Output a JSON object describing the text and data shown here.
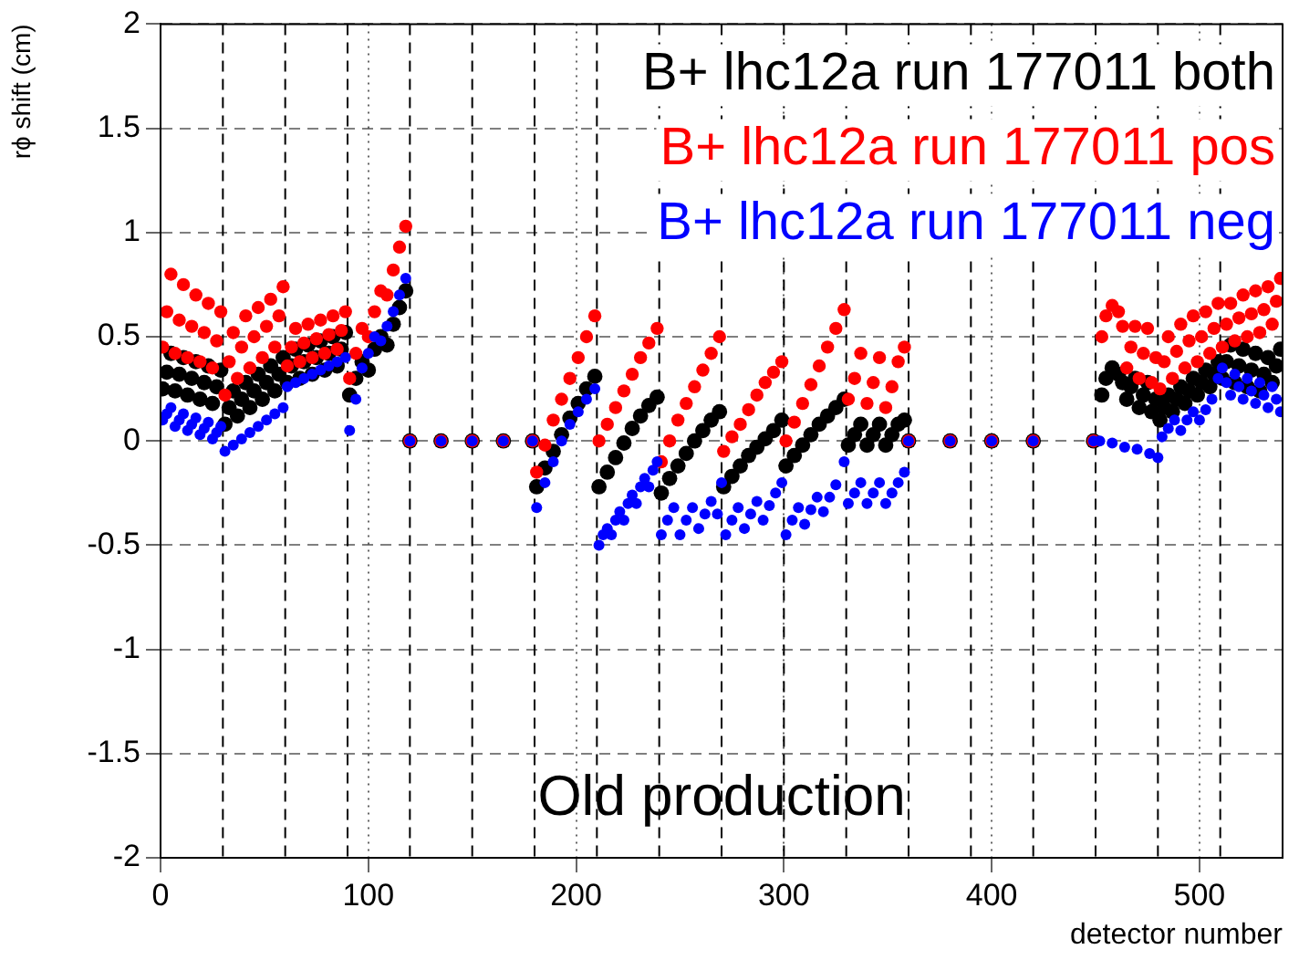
{
  "chart_data": {
    "type": "scatter",
    "xlabel": "detector number",
    "ylabel": "rϕ shift (cm)",
    "xlim": [
      0,
      540
    ],
    "ylim": [
      -2,
      2
    ],
    "xticks": [
      0,
      100,
      200,
      300,
      400,
      500
    ],
    "yticks": [
      -2,
      -1.5,
      -1,
      -0.5,
      0,
      0.5,
      1,
      1.5,
      2
    ],
    "grid": true,
    "legend": "top right",
    "marker": "circle",
    "annotations": [
      {
        "text": "Old production"
      }
    ],
    "ref_lines": [
      {
        "axis": "x",
        "value": 30,
        "line_style": "dashed"
      },
      {
        "axis": "x",
        "value": 60,
        "line_style": "dashed"
      },
      {
        "axis": "x",
        "value": 90,
        "line_style": "dashed"
      },
      {
        "axis": "x",
        "value": 120,
        "line_style": "dashed"
      },
      {
        "axis": "x",
        "value": 150,
        "line_style": "dashed"
      },
      {
        "axis": "x",
        "value": 180,
        "line_style": "dashed"
      },
      {
        "axis": "x",
        "value": 210,
        "line_style": "dashed"
      },
      {
        "axis": "x",
        "value": 240,
        "line_style": "dashed"
      },
      {
        "axis": "x",
        "value": 270,
        "line_style": "dashed"
      },
      {
        "axis": "x",
        "value": 300,
        "line_style": "dashed"
      },
      {
        "axis": "x",
        "value": 330,
        "line_style": "dashed"
      },
      {
        "axis": "x",
        "value": 360,
        "line_style": "dashed"
      },
      {
        "axis": "x",
        "value": 390,
        "line_style": "dashed"
      },
      {
        "axis": "x",
        "value": 420,
        "line_style": "dashed"
      },
      {
        "axis": "x",
        "value": 450,
        "line_style": "dashed"
      },
      {
        "axis": "x",
        "value": 480,
        "line_style": "dashed"
      },
      {
        "axis": "x",
        "value": 510,
        "line_style": "dashed"
      }
    ],
    "series": [
      {
        "name": "B+ lhc12a run 177011 both",
        "color": "#000000",
        "x": [
          1,
          3,
          5,
          7,
          9,
          11,
          13,
          15,
          17,
          19,
          21,
          23,
          25,
          27,
          29,
          31,
          33,
          35,
          37,
          39,
          41,
          43,
          45,
          47,
          49,
          51,
          53,
          55,
          57,
          59,
          61,
          63,
          65,
          67,
          69,
          71,
          73,
          75,
          77,
          79,
          81,
          83,
          85,
          87,
          89,
          91,
          94,
          97,
          100,
          103,
          106,
          109,
          112,
          115,
          118,
          120,
          135,
          150,
          165,
          179,
          181,
          185,
          189,
          193,
          197,
          201,
          205,
          209,
          211,
          215,
          219,
          223,
          227,
          231,
          235,
          239,
          241,
          245,
          249,
          253,
          257,
          261,
          265,
          269,
          271,
          275,
          279,
          283,
          287,
          291,
          295,
          299,
          301,
          305,
          309,
          313,
          317,
          321,
          325,
          329,
          331,
          334,
          337,
          340,
          343,
          346,
          349,
          352,
          355,
          358,
          360,
          380,
          400,
          420,
          449,
          453,
          455,
          458,
          461,
          463,
          465,
          467,
          469,
          471,
          473,
          475,
          477,
          479,
          481,
          483,
          485,
          487,
          489,
          491,
          493,
          495,
          497,
          499,
          501,
          503,
          505,
          507,
          509,
          511,
          513,
          515,
          517,
          519,
          521,
          523,
          525,
          527,
          529,
          531,
          533,
          535,
          537,
          539
        ],
        "values": [
          0.25,
          0.33,
          0.42,
          0.24,
          0.32,
          0.4,
          0.22,
          0.3,
          0.38,
          0.2,
          0.28,
          0.36,
          0.18,
          0.26,
          0.34,
          0.08,
          0.16,
          0.24,
          0.12,
          0.2,
          0.28,
          0.16,
          0.24,
          0.32,
          0.2,
          0.28,
          0.36,
          0.24,
          0.32,
          0.4,
          0.28,
          0.36,
          0.44,
          0.3,
          0.38,
          0.46,
          0.32,
          0.4,
          0.48,
          0.34,
          0.42,
          0.5,
          0.36,
          0.44,
          0.52,
          0.22,
          0.3,
          0.38,
          0.34,
          0.44,
          0.5,
          0.46,
          0.56,
          0.64,
          0.72,
          0,
          0,
          0,
          0,
          0,
          -0.22,
          -0.13,
          -0.05,
          0.03,
          0.11,
          0.18,
          0.25,
          0.31,
          -0.22,
          -0.15,
          -0.08,
          -0.01,
          0.06,
          0.12,
          0.17,
          0.21,
          -0.25,
          -0.18,
          -0.12,
          -0.06,
          0,
          0.05,
          0.1,
          0.14,
          -0.22,
          -0.17,
          -0.12,
          -0.07,
          -0.03,
          0.01,
          0.05,
          0.1,
          -0.12,
          -0.07,
          -0.02,
          0.03,
          0.08,
          0.12,
          0.16,
          0.2,
          -0.02,
          0.03,
          0.08,
          -0.02,
          0.03,
          0.08,
          -0.02,
          0.03,
          0.08,
          0.1,
          0,
          0,
          0,
          0,
          0,
          0.22,
          0.3,
          0.35,
          0.32,
          0.28,
          0.2,
          0.26,
          0.3,
          0.16,
          0.22,
          0.28,
          0.14,
          0.2,
          0.1,
          0.16,
          0.22,
          0.14,
          0.2,
          0.26,
          0.18,
          0.24,
          0.3,
          0.22,
          0.28,
          0.34,
          0.26,
          0.32,
          0.38,
          0.3,
          0.38,
          0.46,
          0.28,
          0.36,
          0.44,
          0.26,
          0.34,
          0.42,
          0.24,
          0.32,
          0.4,
          0.28,
          0.36,
          0.44
        ]
      },
      {
        "name": "B+ lhc12a run 177011 pos",
        "color": "#ff0000",
        "x": [
          1,
          3,
          5,
          7,
          9,
          11,
          13,
          15,
          17,
          19,
          21,
          23,
          25,
          27,
          29,
          31,
          33,
          35,
          37,
          39,
          41,
          43,
          45,
          47,
          49,
          51,
          53,
          55,
          57,
          59,
          61,
          63,
          65,
          67,
          69,
          71,
          73,
          75,
          77,
          79,
          81,
          83,
          85,
          87,
          89,
          91,
          94,
          97,
          100,
          103,
          106,
          109,
          112,
          115,
          118,
          120,
          135,
          150,
          165,
          179,
          181,
          185,
          189,
          193,
          197,
          201,
          205,
          209,
          211,
          215,
          219,
          223,
          227,
          231,
          235,
          239,
          241,
          245,
          249,
          253,
          257,
          261,
          265,
          269,
          271,
          275,
          279,
          283,
          287,
          291,
          295,
          299,
          301,
          305,
          309,
          313,
          317,
          321,
          325,
          329,
          331,
          334,
          337,
          340,
          343,
          346,
          349,
          352,
          355,
          358,
          360,
          380,
          400,
          420,
          449,
          453,
          455,
          458,
          461,
          463,
          465,
          467,
          469,
          471,
          473,
          475,
          477,
          479,
          481,
          483,
          485,
          487,
          489,
          491,
          493,
          495,
          497,
          499,
          501,
          503,
          505,
          507,
          509,
          511,
          513,
          515,
          517,
          519,
          521,
          523,
          525,
          527,
          529,
          531,
          533,
          535,
          537,
          539
        ],
        "values": [
          0.45,
          0.62,
          0.8,
          0.42,
          0.58,
          0.75,
          0.4,
          0.55,
          0.7,
          0.38,
          0.52,
          0.66,
          0.35,
          0.48,
          0.62,
          0.22,
          0.38,
          0.52,
          0.3,
          0.45,
          0.6,
          0.35,
          0.5,
          0.64,
          0.4,
          0.55,
          0.68,
          0.45,
          0.6,
          0.74,
          0.36,
          0.45,
          0.54,
          0.38,
          0.47,
          0.56,
          0.4,
          0.49,
          0.58,
          0.42,
          0.51,
          0.6,
          0.44,
          0.53,
          0.62,
          0.3,
          0.42,
          0.54,
          0.5,
          0.62,
          0.72,
          0.7,
          0.82,
          0.93,
          1.03,
          0,
          0,
          0,
          0,
          0,
          -0.15,
          -0.02,
          0.1,
          0.2,
          0.3,
          0.4,
          0.5,
          0.6,
          0,
          0.08,
          0.16,
          0.24,
          0.32,
          0.4,
          0.47,
          0.54,
          -0.1,
          0,
          0.1,
          0.18,
          0.26,
          0.34,
          0.42,
          0.5,
          -0.05,
          0.02,
          0.08,
          0.15,
          0.22,
          0.28,
          0.33,
          0.38,
          0,
          0.09,
          0.18,
          0.27,
          0.36,
          0.45,
          0.54,
          0.63,
          0.2,
          0.3,
          0.42,
          0.18,
          0.28,
          0.4,
          0.16,
          0.26,
          0.38,
          0.45,
          0,
          0,
          0,
          0,
          0,
          0.5,
          0.6,
          0.65,
          0.62,
          0.55,
          0.35,
          0.45,
          0.55,
          0.3,
          0.42,
          0.54,
          0.28,
          0.4,
          0.25,
          0.38,
          0.5,
          0.3,
          0.43,
          0.56,
          0.35,
          0.48,
          0.6,
          0.38,
          0.5,
          0.62,
          0.42,
          0.54,
          0.66,
          0.45,
          0.56,
          0.66,
          0.48,
          0.59,
          0.7,
          0.5,
          0.61,
          0.72,
          0.52,
          0.63,
          0.74,
          0.56,
          0.67,
          0.78
        ]
      },
      {
        "name": "B+ lhc12a run 177011 neg",
        "color": "#0000ff",
        "x": [
          1,
          3,
          5,
          7,
          9,
          11,
          13,
          15,
          17,
          19,
          21,
          23,
          25,
          27,
          29,
          31,
          35,
          39,
          43,
          47,
          51,
          55,
          59,
          61,
          65,
          69,
          73,
          77,
          81,
          85,
          89,
          91,
          94,
          97,
          100,
          103,
          106,
          109,
          112,
          115,
          118,
          120,
          135,
          150,
          165,
          179,
          181,
          185,
          189,
          193,
          197,
          201,
          205,
          209,
          211,
          213,
          215,
          217,
          219,
          221,
          223,
          225,
          227,
          229,
          231,
          233,
          235,
          237,
          239,
          241,
          244,
          247,
          250,
          253,
          256,
          259,
          262,
          265,
          268,
          270,
          272,
          275,
          278,
          281,
          284,
          287,
          290,
          293,
          296,
          299,
          301,
          304,
          307,
          310,
          313,
          316,
          319,
          322,
          325,
          329,
          331,
          334,
          337,
          340,
          343,
          346,
          349,
          352,
          355,
          358,
          360,
          380,
          400,
          420,
          449,
          452,
          458,
          464,
          470,
          476,
          480,
          482,
          485,
          488,
          491,
          494,
          497,
          500,
          503,
          506,
          509,
          511,
          513,
          515,
          517,
          519,
          521,
          523,
          525,
          527,
          529,
          531,
          533,
          535,
          537,
          539
        ],
        "values": [
          0.1,
          0.13,
          0.16,
          0.07,
          0.1,
          0.13,
          0.05,
          0.08,
          0.11,
          0.03,
          0.06,
          0.09,
          0.01,
          0.04,
          0.07,
          -0.05,
          -0.02,
          0.01,
          0.04,
          0.07,
          0.1,
          0.13,
          0.16,
          0.26,
          0.28,
          0.3,
          0.32,
          0.34,
          0.36,
          0.38,
          0.4,
          0.05,
          0.2,
          0.35,
          0.42,
          0.5,
          0.48,
          0.55,
          0.62,
          0.7,
          0.78,
          0,
          0,
          0,
          0,
          0,
          -0.32,
          -0.2,
          -0.1,
          0,
          0.08,
          0.14,
          0.2,
          0.25,
          -0.5,
          -0.45,
          -0.42,
          -0.45,
          -0.38,
          -0.34,
          -0.38,
          -0.3,
          -0.26,
          -0.3,
          -0.22,
          -0.18,
          -0.22,
          -0.14,
          -0.1,
          -0.45,
          -0.38,
          -0.32,
          -0.45,
          -0.38,
          -0.32,
          -0.42,
          -0.35,
          -0.29,
          -0.35,
          -0.2,
          -0.45,
          -0.38,
          -0.32,
          -0.42,
          -0.35,
          -0.29,
          -0.38,
          -0.31,
          -0.25,
          -0.2,
          -0.45,
          -0.38,
          -0.32,
          -0.4,
          -0.33,
          -0.27,
          -0.34,
          -0.27,
          -0.21,
          -0.1,
          -0.3,
          -0.25,
          -0.2,
          -0.3,
          -0.25,
          -0.2,
          -0.3,
          -0.25,
          -0.2,
          -0.15,
          0,
          0,
          0,
          0,
          0,
          0,
          -0.01,
          -0.03,
          -0.04,
          -0.06,
          -0.08,
          0.02,
          0.06,
          0.1,
          0.05,
          0.1,
          0.14,
          0.1,
          0.15,
          0.2,
          0.3,
          0.35,
          0.28,
          0.22,
          0.32,
          0.26,
          0.2,
          0.3,
          0.24,
          0.18,
          0.28,
          0.22,
          0.16,
          0.26,
          0.2,
          0.14
        ]
      }
    ]
  }
}
